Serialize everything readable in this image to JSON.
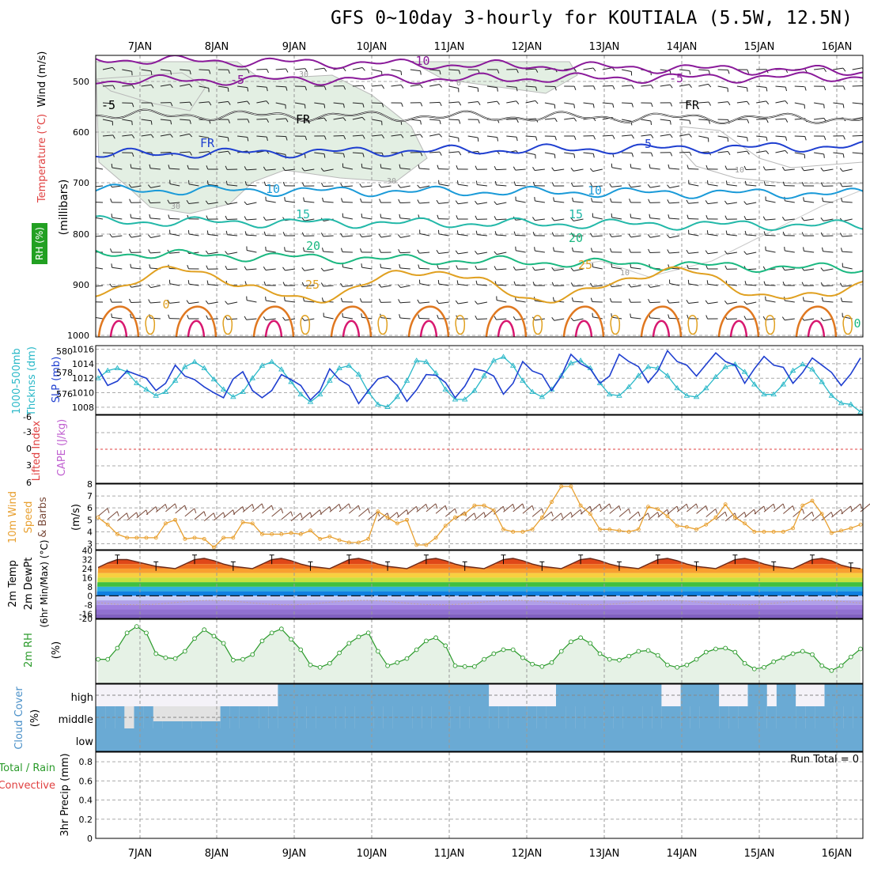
{
  "title": "GFS 0~10day 3-hourly for KOUTIALA (5.5W, 12.5N)",
  "date_labels": [
    "7JAN",
    "8JAN",
    "9JAN",
    "10JAN",
    "11JAN",
    "12JAN",
    "13JAN",
    "14JAN",
    "15JAN",
    "16JAN"
  ],
  "panels": {
    "upper": {
      "label_wind": "Wind (m/s)",
      "label_temp": "Temperature (°C)",
      "label_rh": "RH (%)",
      "label_mb": "(millibars)",
      "y_ticks": [
        "500",
        "600",
        "700",
        "800",
        "900",
        "1000"
      ],
      "contour_labels": [
        "-10",
        "-5",
        "-5",
        "FR",
        "FR",
        "FR",
        "-5",
        "-5",
        "10",
        "10",
        "15",
        "15",
        "20",
        "20",
        "25",
        "25",
        "30",
        "30",
        "30",
        "0",
        "10",
        "10",
        "0",
        "0"
      ]
    },
    "thickness": {
      "label_thk": "1000-500mb Thcknss (dm)",
      "label_slp": "SLP (mb)",
      "left_ticks": [
        "580",
        "578",
        "576"
      ],
      "right_ticks": [
        "1016",
        "1014",
        "1012",
        "1010",
        "1008"
      ]
    },
    "instability": {
      "label_li": "Lifted Index",
      "label_cape": "CAPE (J/kg)",
      "y_ticks": [
        "-6",
        "-3",
        "0",
        "3",
        "6"
      ]
    },
    "wind10": {
      "label_1": "10m Wind",
      "label_2": "Speed",
      "label_3": "& Barbs",
      "label_units": "(m/s)",
      "y_ticks": [
        "8",
        "7",
        "6",
        "5",
        "4",
        "3"
      ]
    },
    "temp2m": {
      "label_1": "2m Temp",
      "label_2": "2m DewPt",
      "label_3": "(6hr Min/Max) (°C)",
      "y_ticks": [
        "40",
        "32",
        "24",
        "16",
        "8",
        "0",
        "-8",
        "-16",
        "-20"
      ]
    },
    "rh2m": {
      "label_1": "2m RH",
      "label_units": "(%)"
    },
    "cloud": {
      "label_1": "Cloud Cover",
      "label_units": "(%)",
      "levels": [
        "high",
        "middle",
        "low"
      ]
    },
    "precip": {
      "label_1": "Total / Rain",
      "label_2": "Convective",
      "label_3": "3hr Precip (mm)",
      "run_total": "Run Total = 0",
      "y_ticks": [
        "0.8",
        "0.6",
        "0.4",
        "0.2",
        "0"
      ]
    }
  },
  "colors": {
    "slp": "#1f3fd0",
    "thickness": "#2ab8c8",
    "wind_speed": "#e8a030",
    "rh_line": "#2a9a2a",
    "rh_fill": "#e6f2e6",
    "cloud": "#6aaad4",
    "cloud_light": "#f4f2f8"
  },
  "chart_data": [
    {
      "type": "line",
      "title": "1000-500mb Thickness (dm) & SLP (mb)",
      "series": [
        {
          "name": "SLP (mb)",
          "values": [
            1013.3,
            1011.0,
            1011.6,
            1013.0,
            1012.5,
            1012.0,
            1010.3,
            1011.3,
            1013.8,
            1012.3,
            1011.8,
            1010.8,
            1010.0,
            1009.3,
            1011.9,
            1012.9,
            1010.3,
            1009.3,
            1010.3,
            1012.5,
            1011.8,
            1011.0,
            1009.0,
            1010.3,
            1013.3,
            1011.8,
            1011.0,
            1008.5,
            1010.3,
            1011.9,
            1012.3,
            1011.0,
            1008.8,
            1010.4,
            1012.5,
            1012.4,
            1011.4,
            1009.3,
            1010.9,
            1013.3,
            1013.0,
            1012.3,
            1009.8,
            1011.3,
            1014.3,
            1013.0,
            1012.5,
            1010.3,
            1012.3,
            1015.3,
            1014.0,
            1013.3,
            1011.3,
            1012.3,
            1015.3,
            1014.3,
            1013.6,
            1011.4,
            1013.0,
            1015.8,
            1014.3,
            1013.8,
            1012.3,
            1013.9,
            1015.5,
            1014.3,
            1013.8,
            1011.3,
            1013.3,
            1015.0,
            1013.8,
            1013.5,
            1011.3,
            1012.8,
            1014.8,
            1013.8,
            1012.8,
            1011.0,
            1012.6,
            1014.8
          ]
        },
        {
          "name": "1000-500mb Thickness (dm)",
          "values": [
            577.9,
            578.5,
            578.7,
            578.4,
            577.5,
            577.0,
            576.5,
            576.8,
            577.7,
            578.8,
            579.2,
            578.7,
            577.8,
            577.0,
            576.4,
            576.8,
            577.9,
            578.9,
            579.2,
            578.6,
            577.6,
            576.6,
            576.0,
            576.6,
            577.7,
            578.7,
            578.9,
            578.2,
            576.8,
            575.8,
            575.6,
            576.4,
            577.7,
            579.3,
            579.2,
            578.3,
            577.0,
            576.2,
            576.2,
            576.9,
            578.1,
            579.3,
            579.6,
            578.9,
            577.7,
            576.8,
            576.4,
            577.0,
            578.1,
            579.1,
            579.3,
            578.7,
            577.5,
            576.6,
            576.5,
            577.2,
            578.1,
            578.8,
            578.7,
            578.1,
            577.1,
            576.5,
            576.4,
            577.1,
            578.0,
            578.8,
            579.0,
            578.4,
            577.4,
            576.6,
            576.6,
            577.4,
            578.5,
            579.0,
            578.6,
            577.6,
            576.5,
            575.9,
            575.8,
            575.2
          ]
        }
      ],
      "left_axis": "1000-500mb Thcknss (dm)",
      "right_axis": "SLP (mb)",
      "left_range": [
        575,
        580.5
      ],
      "right_range": [
        1007,
        1016.5
      ]
    },
    {
      "type": "line",
      "title": "10m Wind Speed (m/s)",
      "series": [
        {
          "name": "10m Wind Speed",
          "values": [
            5.2,
            4.6,
            3.8,
            3.5,
            3.5,
            3.5,
            3.5,
            4.7,
            5.0,
            3.4,
            3.5,
            3.4,
            2.7,
            3.5,
            3.5,
            4.8,
            4.7,
            3.8,
            3.8,
            3.8,
            3.9,
            3.8,
            4.1,
            3.4,
            3.6,
            3.3,
            3.1,
            3.1,
            3.4,
            5.7,
            5.2,
            4.7,
            5.0,
            2.9,
            2.9,
            3.5,
            4.5,
            5.2,
            5.5,
            6.2,
            6.2,
            5.8,
            4.2,
            4.0,
            4.0,
            4.2,
            5.2,
            6.5,
            7.8,
            7.8,
            6.2,
            5.5,
            4.2,
            4.2,
            4.1,
            4.0,
            4.2,
            6.1,
            5.9,
            5.3,
            4.5,
            4.4,
            4.2,
            4.6,
            5.2,
            6.3,
            5.2,
            4.7,
            4.0,
            4.0,
            4.0,
            4.0,
            4.3,
            6.2,
            6.6,
            5.5,
            3.9,
            4.1,
            4.3,
            4.6
          ]
        }
      ],
      "ylim": [
        2.5,
        8
      ]
    },
    {
      "type": "line",
      "title": "2m RH (%)",
      "series": [
        {
          "name": "2m RH",
          "values": [
            30,
            30,
            44,
            63,
            71,
            63,
            37,
            32,
            31,
            40,
            56,
            67,
            59,
            50,
            29,
            30,
            36,
            53,
            63,
            68,
            55,
            42,
            23,
            20,
            25,
            38,
            50,
            58,
            63,
            40,
            22,
            26,
            31,
            42,
            53,
            57,
            47,
            22,
            21,
            21,
            30,
            37,
            42,
            42,
            32,
            24,
            21,
            26,
            40,
            52,
            57,
            50,
            37,
            30,
            29,
            34,
            40,
            41,
            35,
            23,
            20,
            23,
            30,
            39,
            43,
            44,
            39,
            25,
            18,
            20,
            27,
            32,
            37,
            40,
            36,
            22,
            16,
            22,
            33,
            43
          ]
        }
      ],
      "ylim": [
        0,
        80
      ]
    },
    {
      "type": "line",
      "title": "2m Temp (°C)",
      "series": [
        {
          "name": "2m Temp",
          "values": [
            25,
            29,
            32,
            32,
            30,
            28,
            26,
            25,
            24,
            28,
            32,
            33,
            31,
            28,
            26,
            25,
            24,
            28,
            32,
            33,
            31,
            28,
            26,
            25,
            24,
            28,
            32,
            33,
            31,
            28,
            26,
            25,
            24,
            28,
            32,
            33,
            31,
            28,
            26,
            25,
            24,
            28,
            32,
            33,
            31,
            28,
            26,
            25,
            24,
            28,
            32,
            33,
            31,
            28,
            26,
            25,
            24,
            28,
            32,
            33,
            31,
            28,
            26,
            25,
            24,
            28,
            32,
            33,
            31,
            28,
            26,
            25,
            24,
            28,
            32,
            33,
            31,
            27,
            25,
            24
          ]
        }
      ],
      "ylim": [
        -20,
        40
      ]
    },
    {
      "type": "line",
      "title": "3hr Precip (mm)",
      "series": [
        {
          "name": "3hr Precip",
          "values": []
        }
      ],
      "ylim": [
        0,
        0.9
      ]
    }
  ]
}
